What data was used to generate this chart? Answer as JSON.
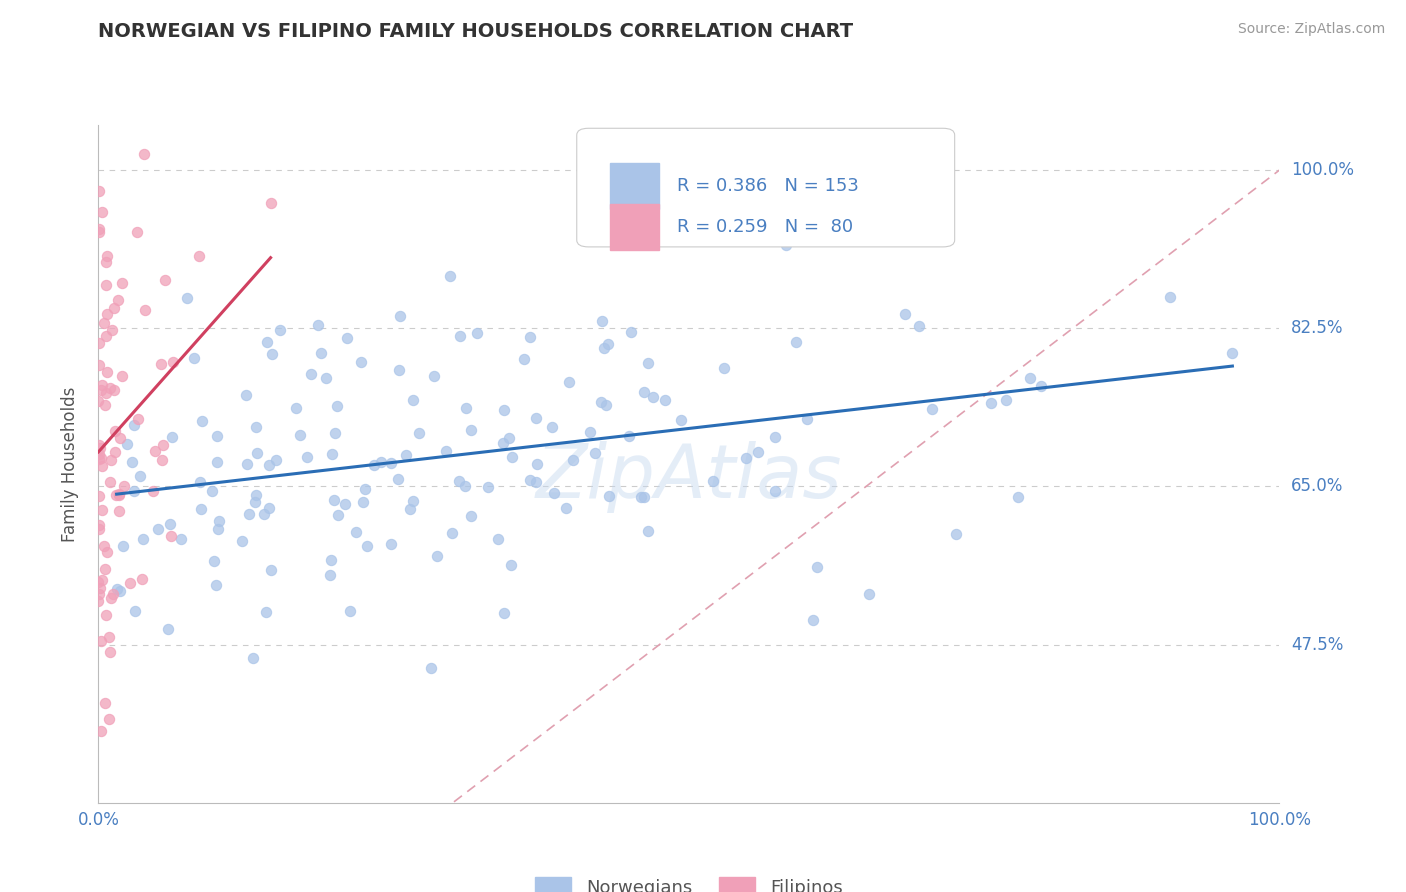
{
  "title": "NORWEGIAN VS FILIPINO FAMILY HOUSEHOLDS CORRELATION CHART",
  "source": "Source: ZipAtlas.com",
  "ylabel": "Family Households",
  "legend_labels": [
    "Norwegians",
    "Filipinos"
  ],
  "norwegian_R": 0.386,
  "norwegian_N": 153,
  "filipino_R": 0.259,
  "filipino_N": 80,
  "norwegian_color": "#aac4e8",
  "norwegian_line_color": "#2a6db5",
  "filipino_color": "#f0a0b8",
  "filipino_line_color": "#d04060",
  "diagonal_color": "#e0a0b0",
  "title_color": "#333333",
  "tick_color": "#4a7fc1",
  "grid_color": "#cccccc",
  "xlim": [
    0,
    1
  ],
  "ylim": [
    0.3,
    1.05
  ],
  "yticks": [
    0.475,
    0.65,
    0.825,
    1.0
  ],
  "ytick_labels": [
    "47.5%",
    "65.0%",
    "82.5%",
    "100.0%"
  ],
  "background_color": "#ffffff",
  "nor_seed": 42,
  "fil_seed": 7
}
